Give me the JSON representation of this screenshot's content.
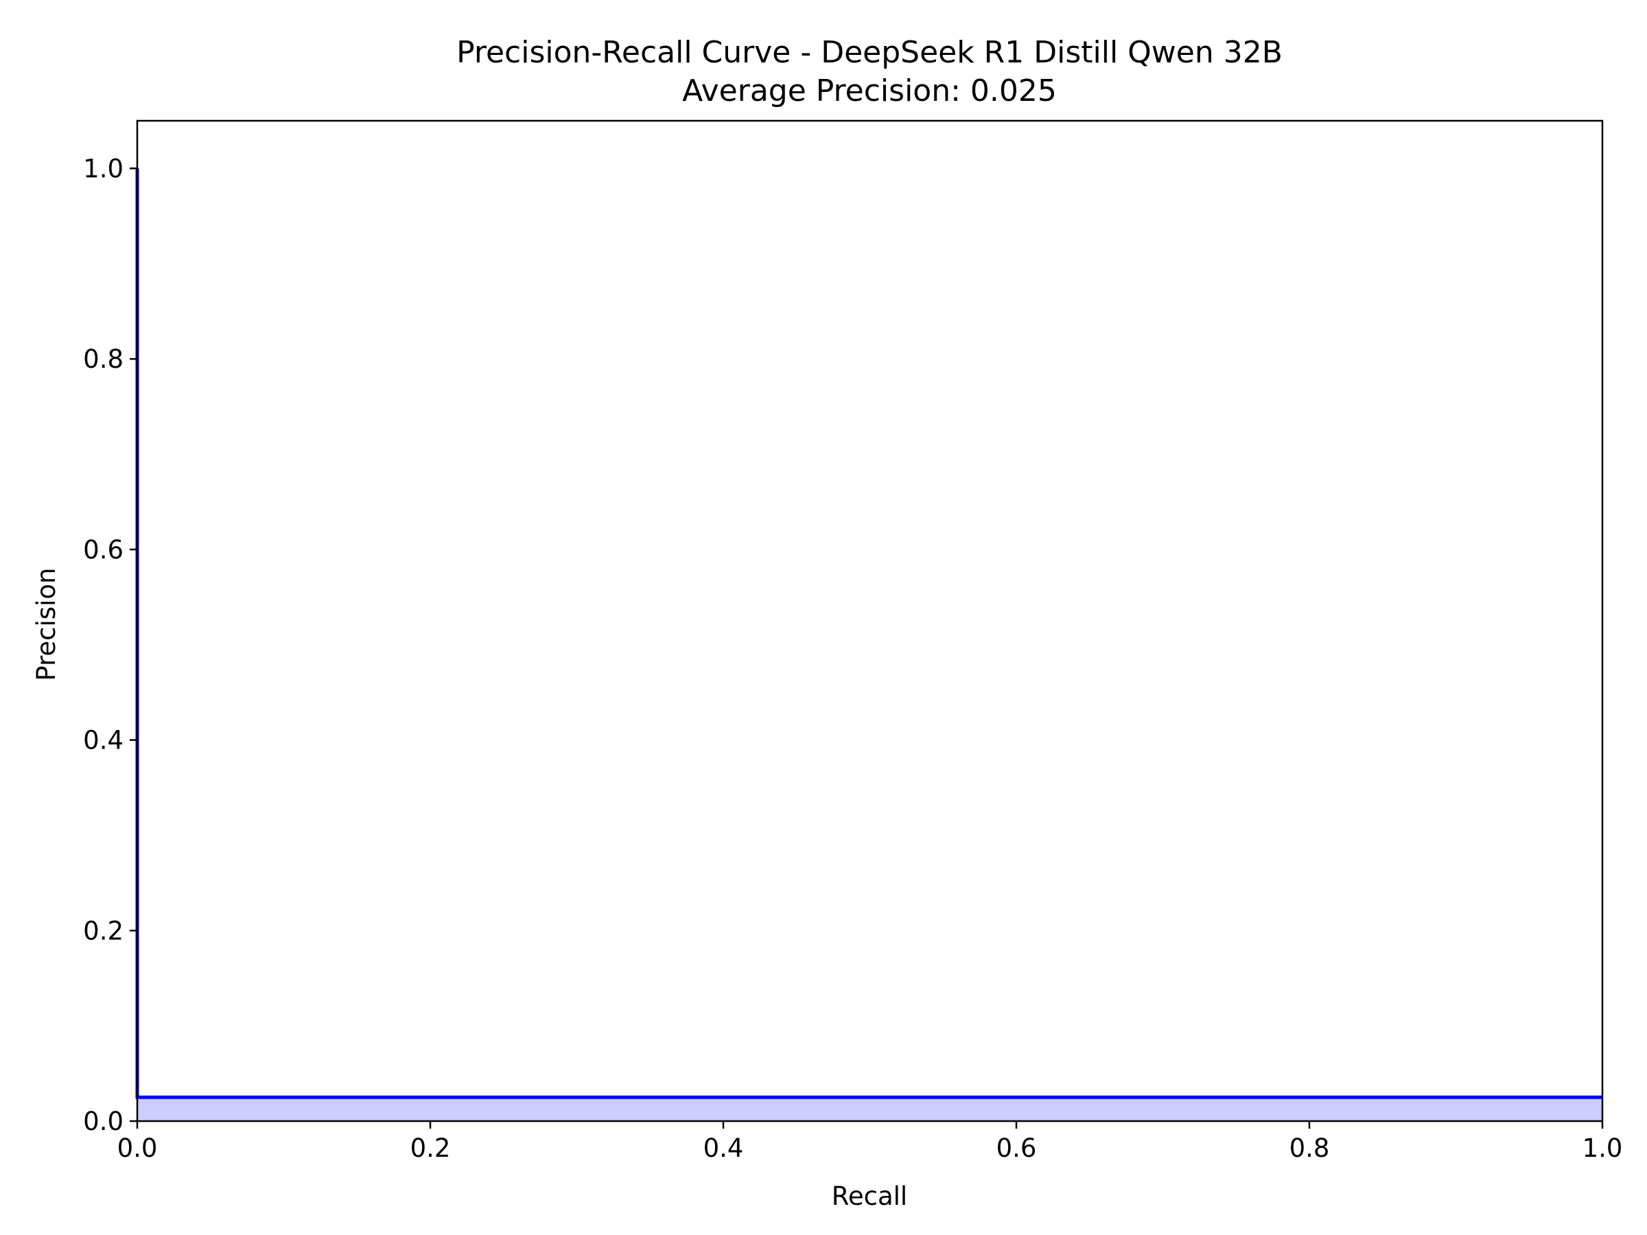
{
  "chart_data": {
    "type": "line",
    "title": "Precision-Recall Curve - DeepSeek R1 Distill Qwen 32B",
    "subtitle": "Average Precision: 0.025",
    "xlabel": "Recall",
    "ylabel": "Precision",
    "xlim": [
      0.0,
      1.0
    ],
    "ylim": [
      0.0,
      1.05
    ],
    "x_ticks": [
      0.0,
      0.2,
      0.4,
      0.6,
      0.8,
      1.0
    ],
    "y_ticks": [
      0.0,
      0.2,
      0.4,
      0.6,
      0.8,
      1.0
    ],
    "x_tick_labels": [
      "0.0",
      "0.2",
      "0.4",
      "0.6",
      "0.8",
      "1.0"
    ],
    "y_tick_labels": [
      "0.0",
      "0.2",
      "0.4",
      "0.6",
      "0.8",
      "1.0"
    ],
    "grid": false,
    "series": [
      {
        "x": [
          1.0,
          0.0,
          0.0
        ],
        "y": [
          0.025,
          0.025,
          1.0
        ],
        "color": "#0000ff",
        "fill_color": "#ccccff",
        "filled": true
      }
    ]
  }
}
